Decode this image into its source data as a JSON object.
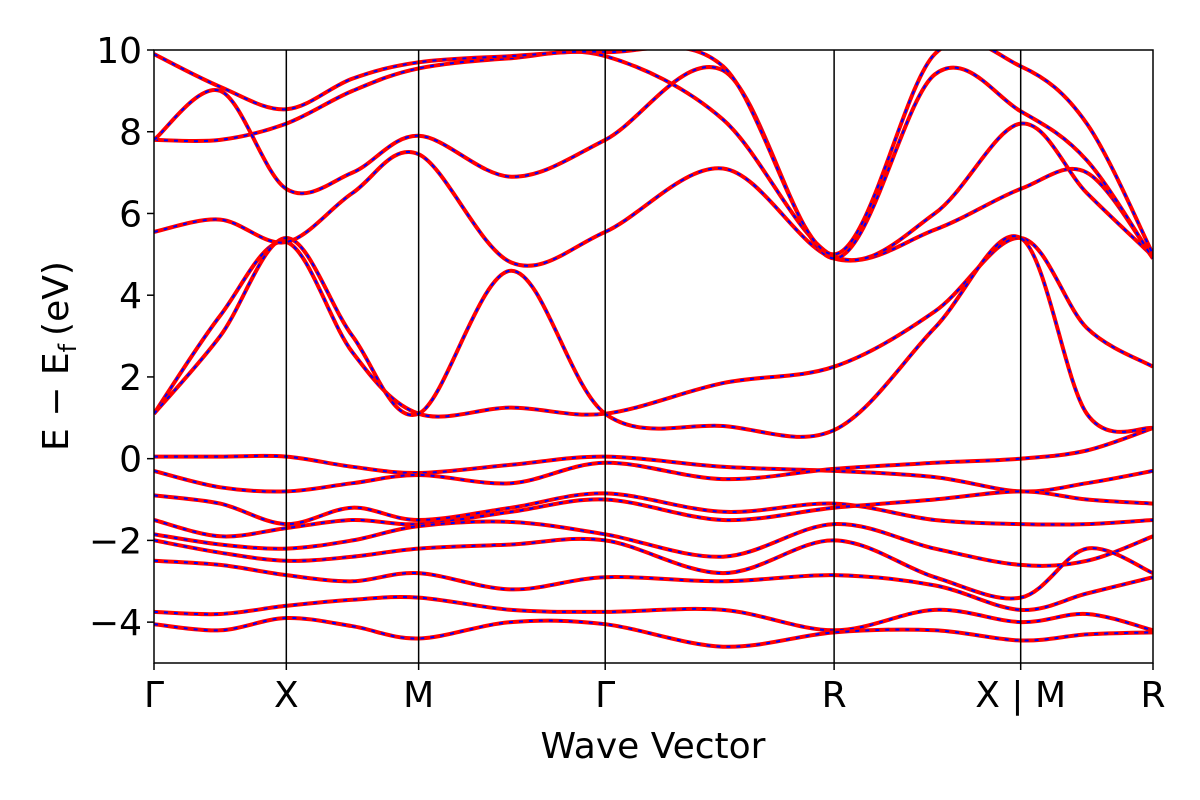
{
  "chart_data": {
    "type": "line",
    "title": "",
    "xlabel": "Wave Vector",
    "ylabel": {
      "main": "E − E",
      "sub": "f",
      "unit": "(eV)"
    },
    "ylim": [
      -5,
      10
    ],
    "yticks": [
      {
        "value": 10,
        "label": "10"
      },
      {
        "value": 8,
        "label": "8"
      },
      {
        "value": 6,
        "label": "6"
      },
      {
        "value": 4,
        "label": "4"
      },
      {
        "value": 2,
        "label": "2"
      },
      {
        "value": 0,
        "label": "0"
      },
      {
        "value": -2,
        "label": "−2"
      },
      {
        "value": -4,
        "label": "−4"
      }
    ],
    "kpath_ticks": [
      {
        "pos": 0.0,
        "label": "Γ"
      },
      {
        "pos": 1.0,
        "label": "X"
      },
      {
        "pos": 2.0,
        "label": "M"
      },
      {
        "pos": 3.41,
        "label": "Γ"
      },
      {
        "pos": 5.14,
        "label": "R"
      },
      {
        "pos": 6.55,
        "label": "X | M"
      },
      {
        "pos": 7.55,
        "label": "R"
      }
    ],
    "xlim": [
      0,
      7.55
    ],
    "segments": [
      [
        0,
        1
      ],
      [
        1,
        2
      ],
      [
        2,
        3.41
      ],
      [
        3.41,
        5.14
      ],
      [
        5.14,
        6.55
      ],
      [
        6.55,
        7.55
      ]
    ],
    "grid": false,
    "line_colors": {
      "solid": "#ff0000",
      "dashed": "#0000ff"
    },
    "series": [
      {
        "x": [
          0,
          0.5,
          1,
          1.5,
          2,
          2.7,
          3.41,
          4.3,
          5.14,
          5.9,
          6.55,
          7.05,
          7.55
        ],
        "values": [
          0.05,
          0.05,
          0.05,
          -0.2,
          -0.35,
          -0.15,
          0.05,
          -0.2,
          -0.3,
          -0.45,
          -0.8,
          -0.6,
          -0.3
        ]
      },
      {
        "x": [
          0,
          0.5,
          1,
          1.5,
          2,
          2.7,
          3.41,
          4.3,
          5.14,
          5.9,
          6.55,
          7.05,
          7.55
        ],
        "values": [
          -0.3,
          -0.7,
          -0.8,
          -0.6,
          -0.4,
          -0.6,
          -0.1,
          -0.5,
          -0.25,
          -0.1,
          0.0,
          0.2,
          0.75
        ]
      },
      {
        "x": [
          0,
          0.5,
          1,
          1.5,
          2,
          2.7,
          3.41,
          4.3,
          5.14,
          5.9,
          6.55,
          7.05,
          7.55
        ],
        "values": [
          -0.9,
          -1.1,
          -1.6,
          -1.2,
          -1.5,
          -1.2,
          -0.85,
          -1.3,
          -1.1,
          -1.5,
          -1.6,
          -1.6,
          -1.5
        ]
      },
      {
        "x": [
          0,
          0.5,
          1,
          1.5,
          2,
          2.7,
          3.41,
          4.3,
          5.14,
          5.9,
          6.55,
          7.05,
          7.55
        ],
        "values": [
          -1.5,
          -1.9,
          -1.7,
          -1.5,
          -1.6,
          -1.3,
          -1.0,
          -1.5,
          -1.2,
          -1.0,
          -0.8,
          -1.0,
          -1.1
        ]
      },
      {
        "x": [
          0,
          0.5,
          1,
          1.5,
          2,
          2.7,
          3.41,
          4.3,
          5.14,
          5.9,
          6.55,
          7.05,
          7.55
        ],
        "values": [
          -1.85,
          -2.1,
          -2.2,
          -2.0,
          -1.65,
          -1.55,
          -1.85,
          -2.4,
          -1.6,
          -2.2,
          -2.6,
          -2.5,
          -1.9
        ]
      },
      {
        "x": [
          0,
          0.5,
          1,
          1.5,
          2,
          2.7,
          3.41,
          4.3,
          5.14,
          5.9,
          6.55,
          7.05,
          7.55
        ],
        "values": [
          -2.0,
          -2.3,
          -2.5,
          -2.4,
          -2.2,
          -2.1,
          -2.0,
          -2.8,
          -2.0,
          -2.9,
          -3.4,
          -2.2,
          -2.8
        ]
      },
      {
        "x": [
          0,
          0.5,
          1,
          1.5,
          2,
          2.7,
          3.41,
          4.3,
          5.14,
          5.9,
          6.55,
          7.05,
          7.55
        ],
        "values": [
          -2.5,
          -2.6,
          -2.85,
          -3.0,
          -2.8,
          -3.2,
          -2.9,
          -3.0,
          -2.85,
          -3.1,
          -3.7,
          -3.3,
          -2.9
        ]
      },
      {
        "x": [
          0,
          0.5,
          1,
          1.5,
          2,
          2.7,
          3.41,
          4.3,
          5.14,
          5.9,
          6.55,
          7.05,
          7.55
        ],
        "values": [
          -3.75,
          -3.8,
          -3.6,
          -3.45,
          -3.4,
          -3.7,
          -3.75,
          -3.7,
          -4.2,
          -3.7,
          -4.0,
          -3.8,
          -4.2
        ]
      },
      {
        "x": [
          0,
          0.5,
          1,
          1.5,
          2,
          2.7,
          3.41,
          4.3,
          5.14,
          5.9,
          6.55,
          7.05,
          7.55
        ],
        "values": [
          -4.05,
          -4.2,
          -3.9,
          -4.1,
          -4.4,
          -4.0,
          -4.05,
          -4.6,
          -4.25,
          -4.2,
          -4.45,
          -4.3,
          -4.25
        ]
      },
      {
        "x": [
          0,
          0.5,
          1,
          1.5,
          2,
          2.7,
          3.41,
          4.3,
          5.14,
          5.9,
          6.55,
          7.05,
          7.55
        ],
        "values": [
          1.1,
          3.5,
          5.3,
          2.6,
          1.1,
          1.25,
          1.1,
          1.85,
          2.25,
          3.6,
          5.4,
          3.2,
          2.25
        ]
      },
      {
        "x": [
          0,
          0.5,
          1,
          1.5,
          2,
          2.7,
          3.41,
          4.3,
          5.14,
          5.9,
          6.55,
          7.05,
          7.55
        ],
        "values": [
          1.1,
          3.0,
          5.4,
          3.0,
          1.1,
          4.6,
          1.1,
          0.8,
          0.7,
          3.2,
          5.4,
          1.1,
          0.75
        ]
      },
      {
        "x": [
          0,
          0.5,
          1,
          1.5,
          2,
          2.7,
          3.41,
          4.3,
          5.14,
          5.9,
          6.55,
          7.05,
          7.55
        ],
        "values": [
          5.55,
          5.85,
          5.3,
          6.5,
          7.45,
          4.8,
          5.55,
          7.1,
          4.9,
          5.6,
          6.6,
          7.0,
          4.9
        ]
      },
      {
        "x": [
          0,
          0.5,
          1,
          1.5,
          2,
          2.7,
          3.41,
          4.3,
          5.14,
          5.9,
          6.55,
          7.05,
          7.55
        ],
        "values": [
          7.8,
          7.8,
          8.2,
          9.0,
          9.55,
          9.8,
          9.85,
          8.3,
          4.95,
          6.0,
          8.2,
          6.5,
          4.95
        ]
      },
      {
        "x": [
          0,
          0.5,
          1,
          1.5,
          2,
          2.7,
          3.41,
          4.3,
          5.14,
          5.9,
          6.55,
          7.05,
          7.55
        ],
        "values": [
          7.8,
          9.0,
          6.6,
          7.0,
          7.9,
          6.9,
          7.8,
          9.5,
          4.9,
          9.4,
          8.5,
          7.3,
          4.9
        ]
      },
      {
        "x": [
          0,
          0.5,
          1,
          1.5,
          2,
          2.7,
          3.41,
          4.3,
          5.14,
          5.9,
          6.55,
          7.05,
          7.55
        ],
        "values": [
          9.9,
          9.1,
          8.55,
          9.3,
          9.7,
          9.85,
          9.95,
          9.6,
          5.0,
          9.9,
          9.6,
          8.2,
          5.0
        ]
      }
    ]
  }
}
